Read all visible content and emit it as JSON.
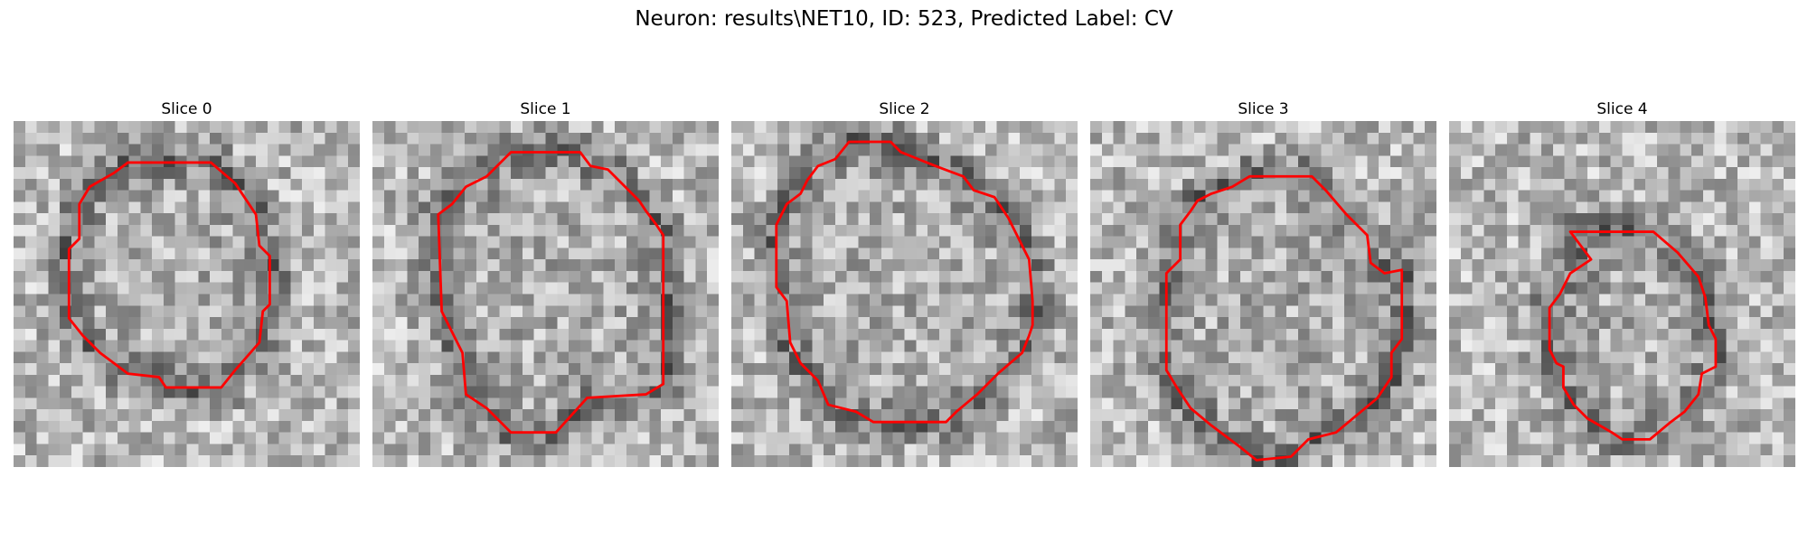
{
  "figure": {
    "title": "Neuron: results\\NET10, ID: 523, Predicted Label: CV"
  },
  "contour_color": "#ff0000",
  "panels": [
    {
      "title": "Slice 0",
      "contour": [
        [
          0.33,
          0.12
        ],
        [
          0.57,
          0.12
        ],
        [
          0.64,
          0.18
        ],
        [
          0.7,
          0.27
        ],
        [
          0.71,
          0.36
        ],
        [
          0.74,
          0.39
        ],
        [
          0.74,
          0.53
        ],
        [
          0.72,
          0.55
        ],
        [
          0.71,
          0.64
        ],
        [
          0.64,
          0.72
        ],
        [
          0.6,
          0.77
        ],
        [
          0.44,
          0.77
        ],
        [
          0.42,
          0.74
        ],
        [
          0.33,
          0.73
        ],
        [
          0.25,
          0.67
        ],
        [
          0.2,
          0.62
        ],
        [
          0.16,
          0.57
        ],
        [
          0.16,
          0.37
        ],
        [
          0.19,
          0.34
        ],
        [
          0.19,
          0.24
        ],
        [
          0.22,
          0.19
        ],
        [
          0.29,
          0.15
        ]
      ]
    },
    {
      "title": "Slice 1",
      "contour": [
        [
          0.4,
          0.09
        ],
        [
          0.6,
          0.09
        ],
        [
          0.63,
          0.13
        ],
        [
          0.68,
          0.14
        ],
        [
          0.77,
          0.23
        ],
        [
          0.79,
          0.26
        ],
        [
          0.82,
          0.3
        ],
        [
          0.84,
          0.33
        ],
        [
          0.84,
          0.76
        ],
        [
          0.79,
          0.79
        ],
        [
          0.62,
          0.8
        ],
        [
          0.53,
          0.9
        ],
        [
          0.4,
          0.9
        ],
        [
          0.33,
          0.83
        ],
        [
          0.27,
          0.79
        ],
        [
          0.26,
          0.67
        ],
        [
          0.23,
          0.61
        ],
        [
          0.2,
          0.55
        ],
        [
          0.19,
          0.27
        ],
        [
          0.23,
          0.24
        ],
        [
          0.27,
          0.19
        ],
        [
          0.33,
          0.16
        ]
      ]
    },
    {
      "title": "Slice 2",
      "contour": [
        [
          0.34,
          0.06
        ],
        [
          0.46,
          0.06
        ],
        [
          0.49,
          0.09
        ],
        [
          0.54,
          0.11
        ],
        [
          0.59,
          0.13
        ],
        [
          0.67,
          0.16
        ],
        [
          0.7,
          0.2
        ],
        [
          0.76,
          0.22
        ],
        [
          0.8,
          0.28
        ],
        [
          0.83,
          0.34
        ],
        [
          0.86,
          0.4
        ],
        [
          0.87,
          0.52
        ],
        [
          0.87,
          0.59
        ],
        [
          0.86,
          0.62
        ],
        [
          0.84,
          0.67
        ],
        [
          0.77,
          0.73
        ],
        [
          0.71,
          0.79
        ],
        [
          0.65,
          0.84
        ],
        [
          0.62,
          0.87
        ],
        [
          0.41,
          0.87
        ],
        [
          0.36,
          0.84
        ],
        [
          0.28,
          0.82
        ],
        [
          0.25,
          0.75
        ],
        [
          0.2,
          0.7
        ],
        [
          0.17,
          0.64
        ],
        [
          0.16,
          0.52
        ],
        [
          0.13,
          0.48
        ],
        [
          0.13,
          0.3
        ],
        [
          0.16,
          0.24
        ],
        [
          0.2,
          0.21
        ],
        [
          0.22,
          0.17
        ],
        [
          0.25,
          0.13
        ],
        [
          0.3,
          0.11
        ]
      ]
    },
    {
      "title": "Slice 3",
      "contour": [
        [
          0.46,
          0.16
        ],
        [
          0.64,
          0.16
        ],
        [
          0.68,
          0.2
        ],
        [
          0.74,
          0.27
        ],
        [
          0.8,
          0.33
        ],
        [
          0.81,
          0.41
        ],
        [
          0.85,
          0.44
        ],
        [
          0.9,
          0.43
        ],
        [
          0.9,
          0.63
        ],
        [
          0.87,
          0.67
        ],
        [
          0.87,
          0.74
        ],
        [
          0.83,
          0.8
        ],
        [
          0.71,
          0.9
        ],
        [
          0.63,
          0.92
        ],
        [
          0.58,
          0.97
        ],
        [
          0.48,
          0.98
        ],
        [
          0.43,
          0.94
        ],
        [
          0.35,
          0.88
        ],
        [
          0.29,
          0.83
        ],
        [
          0.25,
          0.77
        ],
        [
          0.22,
          0.72
        ],
        [
          0.22,
          0.44
        ],
        [
          0.26,
          0.4
        ],
        [
          0.26,
          0.3
        ],
        [
          0.29,
          0.26
        ],
        [
          0.31,
          0.23
        ],
        [
          0.35,
          0.21
        ],
        [
          0.41,
          0.19
        ]
      ]
    },
    {
      "title": "Slice 4",
      "contour": [
        [
          0.35,
          0.32
        ],
        [
          0.59,
          0.32
        ],
        [
          0.66,
          0.38
        ],
        [
          0.72,
          0.45
        ],
        [
          0.74,
          0.51
        ],
        [
          0.75,
          0.59
        ],
        [
          0.77,
          0.63
        ],
        [
          0.77,
          0.71
        ],
        [
          0.73,
          0.73
        ],
        [
          0.72,
          0.79
        ],
        [
          0.68,
          0.84
        ],
        [
          0.64,
          0.87
        ],
        [
          0.58,
          0.92
        ],
        [
          0.5,
          0.92
        ],
        [
          0.47,
          0.9
        ],
        [
          0.4,
          0.86
        ],
        [
          0.36,
          0.82
        ],
        [
          0.33,
          0.77
        ],
        [
          0.33,
          0.71
        ],
        [
          0.31,
          0.7
        ],
        [
          0.29,
          0.66
        ],
        [
          0.29,
          0.54
        ],
        [
          0.32,
          0.5
        ],
        [
          0.35,
          0.44
        ],
        [
          0.38,
          0.42
        ],
        [
          0.41,
          0.4
        ]
      ]
    }
  ]
}
